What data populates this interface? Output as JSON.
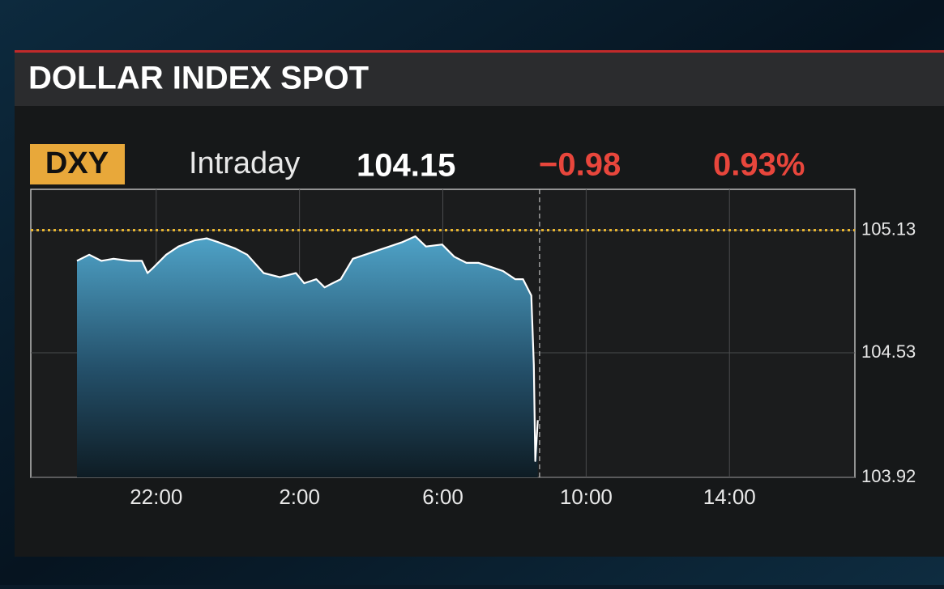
{
  "chart_data": {
    "type": "line",
    "title": "DOLLAR INDEX SPOT",
    "ticker": "DXY",
    "period": "Intraday",
    "last_price": "104.15",
    "net_change": "−0.98",
    "pct_change": "0.93%",
    "x": [
      19.79,
      20.13,
      20.47,
      20.81,
      21.26,
      21.6,
      21.76,
      21.94,
      22.28,
      22.62,
      23.07,
      23.41,
      23.75,
      24.21,
      24.54,
      25.0,
      25.45,
      25.9,
      26.13,
      26.47,
      26.7,
      26.92,
      27.15,
      27.49,
      27.83,
      28.17,
      28.51,
      28.85,
      29.23,
      29.53,
      29.98,
      30.32,
      30.66,
      31.0,
      31.34,
      31.68,
      32.02,
      32.24,
      32.47,
      32.54,
      32.58,
      32.65
    ],
    "series": [
      {
        "color": "#ffffff",
        "values": [
          104.98,
          105.01,
          104.98,
          104.99,
          104.98,
          104.98,
          104.92,
          104.95,
          105.01,
          105.05,
          105.08,
          105.09,
          105.07,
          105.04,
          105.01,
          104.92,
          104.9,
          104.92,
          104.87,
          104.89,
          104.85,
          104.87,
          104.89,
          104.99,
          105.01,
          105.03,
          105.05,
          105.07,
          105.1,
          105.05,
          105.06,
          105.0,
          104.97,
          104.97,
          104.95,
          104.93,
          104.89,
          104.89,
          104.81,
          104.47,
          104.0,
          104.2
        ]
      }
    ],
    "reference_value": 105.13,
    "reference_color": "#e8b530",
    "now_x": 32.7,
    "xlim": [
      18.5,
      41.5
    ],
    "xticks": [
      {
        "value": 22,
        "label": "22:00"
      },
      {
        "value": 26,
        "label": "2:00"
      },
      {
        "value": 30,
        "label": "6:00"
      },
      {
        "value": 34,
        "label": "10:00"
      },
      {
        "value": 38,
        "label": "14:00"
      }
    ],
    "ylim": [
      103.92,
      105.33
    ],
    "yticks": [
      103.92,
      104.53,
      105.13
    ],
    "grid": true
  }
}
